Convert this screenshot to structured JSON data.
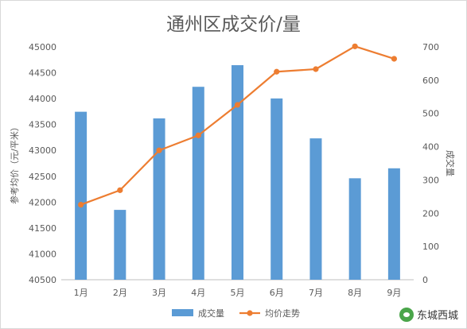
{
  "chart_data": {
    "type": "bar+line",
    "title": "通州区成交价/量",
    "categories": [
      "1月",
      "2月",
      "3月",
      "4月",
      "5月",
      "6月",
      "7月",
      "8月",
      "9月"
    ],
    "series": [
      {
        "name": "成交量",
        "type": "bar",
        "axis": "right",
        "color": "#5b9bd5",
        "values": [
          505,
          210,
          485,
          580,
          645,
          545,
          425,
          305,
          335
        ]
      },
      {
        "name": "均价走势",
        "type": "line",
        "axis": "left",
        "color": "#ed7d31",
        "values": [
          41950,
          42230,
          43000,
          43290,
          43880,
          44520,
          44570,
          45010,
          44770
        ]
      }
    ],
    "ylabel_left": "参考均价（元/平米）",
    "ylabel_right": "成交量",
    "ylim_left": [
      40500,
      45000
    ],
    "yticks_left": [
      "45000",
      "44500",
      "44000",
      "43500",
      "43000",
      "42500",
      "42000",
      "41500",
      "41000",
      "40500"
    ],
    "ylim_right": [
      0,
      700
    ],
    "yticks_right": [
      "700",
      "600",
      "500",
      "400",
      "300",
      "200",
      "100",
      "0"
    ],
    "grid": false,
    "legend_position": "bottom"
  },
  "watermark": {
    "text": "东城西城"
  }
}
